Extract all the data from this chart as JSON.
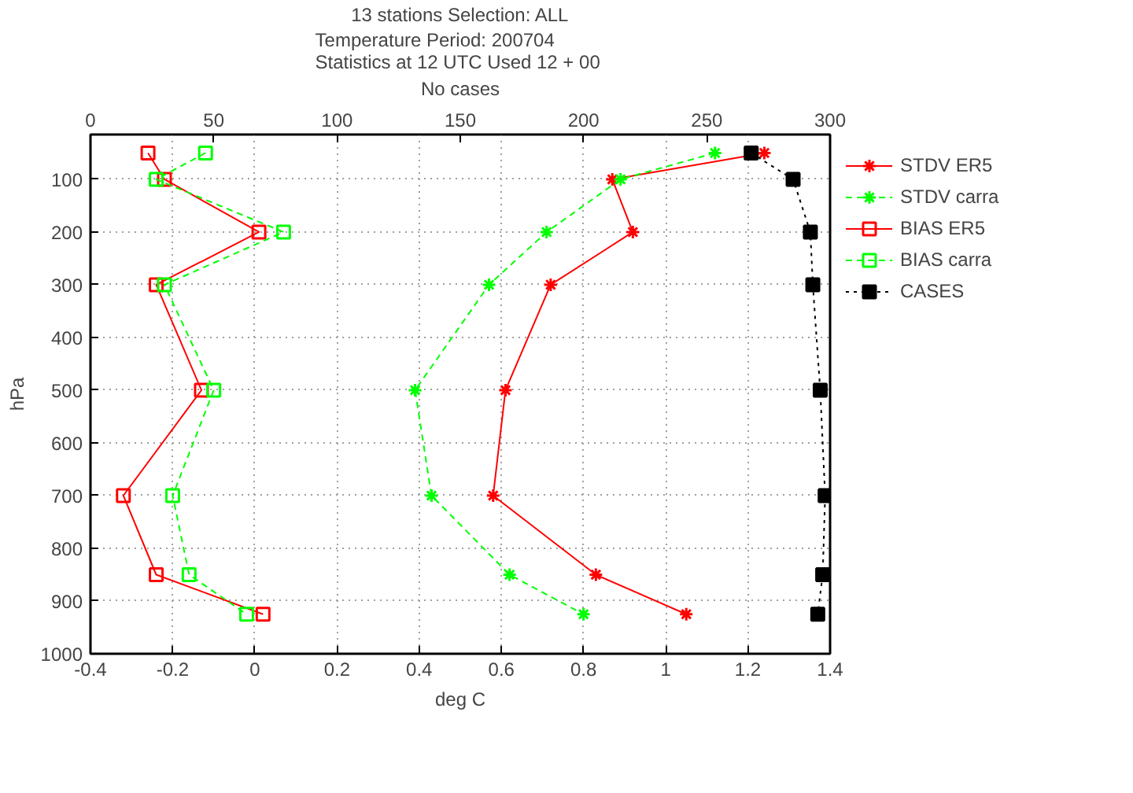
{
  "chart_data": {
    "type": "line",
    "orientation": "horizontal",
    "title": "13 stations Selection: ALL",
    "subtitle": "Temperature  Period: 200704\nStatistics at 12 UTC  Used 12 + 00",
    "xlabel": "deg C",
    "ylabel": "hPa",
    "x2label": "No cases",
    "x": [
      50,
      100,
      200,
      300,
      500,
      700,
      850,
      925
    ],
    "xlim": [
      -0.4,
      1.4
    ],
    "xticks": [
      {
        "value": -0.4,
        "label": "-0.4"
      },
      {
        "value": -0.2,
        "label": "-0.2"
      },
      0,
      {
        "value": 0.2,
        "label": "0.2"
      },
      {
        "value": 0.4,
        "label": "0.4"
      },
      {
        "value": 0.6,
        "label": "0.6"
      },
      {
        "value": 0.8,
        "label": "0.8"
      },
      1,
      {
        "value": 1.2,
        "label": "1.2"
      },
      {
        "value": 1.4,
        "label": "1.4"
      }
    ],
    "x2lim": [
      0,
      300
    ],
    "x2ticks": [
      0,
      50,
      100,
      150,
      200,
      250,
      300
    ],
    "ylim": [
      1000,
      15
    ],
    "yticks": [
      100,
      200,
      300,
      400,
      500,
      600,
      700,
      800,
      900,
      1000
    ],
    "grid": true,
    "legend": "right",
    "series": [
      {
        "name": "STDV ER5",
        "color": "#ff0000",
        "marker": "cross",
        "line_style": "solid",
        "values": [
          1.24,
          0.87,
          0.92,
          0.72,
          0.61,
          0.58,
          0.83,
          1.05
        ]
      },
      {
        "name": "STDV carra",
        "color": "#00ff00",
        "marker": "cross",
        "line_style": "dashed",
        "values": [
          1.12,
          0.89,
          0.71,
          0.57,
          0.39,
          0.43,
          0.62,
          0.8
        ]
      },
      {
        "name": "BIAS ER5",
        "color": "#ff0000",
        "marker": "square",
        "line_style": "solid",
        "values": [
          -0.26,
          -0.22,
          0.01,
          -0.24,
          -0.13,
          -0.32,
          -0.24,
          0.02
        ]
      },
      {
        "name": "BIAS carra",
        "color": "#00ff00",
        "marker": "square",
        "line_style": "dashed",
        "values": [
          -0.12,
          -0.24,
          0.07,
          -0.22,
          -0.1,
          -0.2,
          -0.16,
          -0.02
        ]
      },
      {
        "name": "CASES",
        "color": "#000000",
        "marker": "square",
        "line_style": "dotted",
        "axis": "x2",
        "values": [
          268,
          285,
          292,
          293,
          296,
          298,
          297,
          295
        ]
      }
    ]
  }
}
